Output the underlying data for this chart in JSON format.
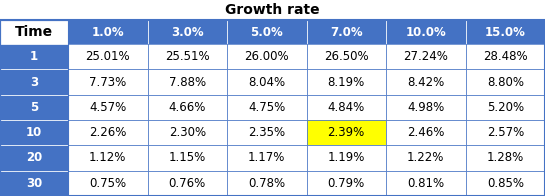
{
  "title": "Growth rate",
  "col_headers": [
    "1.0%",
    "3.0%",
    "5.0%",
    "7.0%",
    "10.0%",
    "15.0%"
  ],
  "row_headers": [
    "1",
    "3",
    "5",
    "10",
    "20",
    "30"
  ],
  "row_label": "Time",
  "values": [
    [
      "25.01%",
      "25.51%",
      "26.00%",
      "26.50%",
      "27.24%",
      "28.48%"
    ],
    [
      "7.73%",
      "7.88%",
      "8.04%",
      "8.19%",
      "8.42%",
      "8.80%"
    ],
    [
      "4.57%",
      "4.66%",
      "4.75%",
      "4.84%",
      "4.98%",
      "5.20%"
    ],
    [
      "2.26%",
      "2.30%",
      "2.35%",
      "2.39%",
      "2.46%",
      "2.57%"
    ],
    [
      "1.12%",
      "1.15%",
      "1.17%",
      "1.19%",
      "1.22%",
      "1.28%"
    ],
    [
      "0.75%",
      "0.76%",
      "0.78%",
      "0.79%",
      "0.81%",
      "0.85%"
    ]
  ],
  "highlight_row": 3,
  "highlight_col": 4,
  "highlight_color": "#FFFF00",
  "header_bg": "#4472C4",
  "header_text": "#FFFFFF",
  "row_header_bg": "#4472C4",
  "row_header_text": "#FFFFFF",
  "cell_bg": "#FFFFFF",
  "grid_color": "#4472C4",
  "title_fontsize": 10,
  "cell_fontsize": 8.5,
  "header_fontsize": 8.5,
  "row_label_fontsize": 10
}
